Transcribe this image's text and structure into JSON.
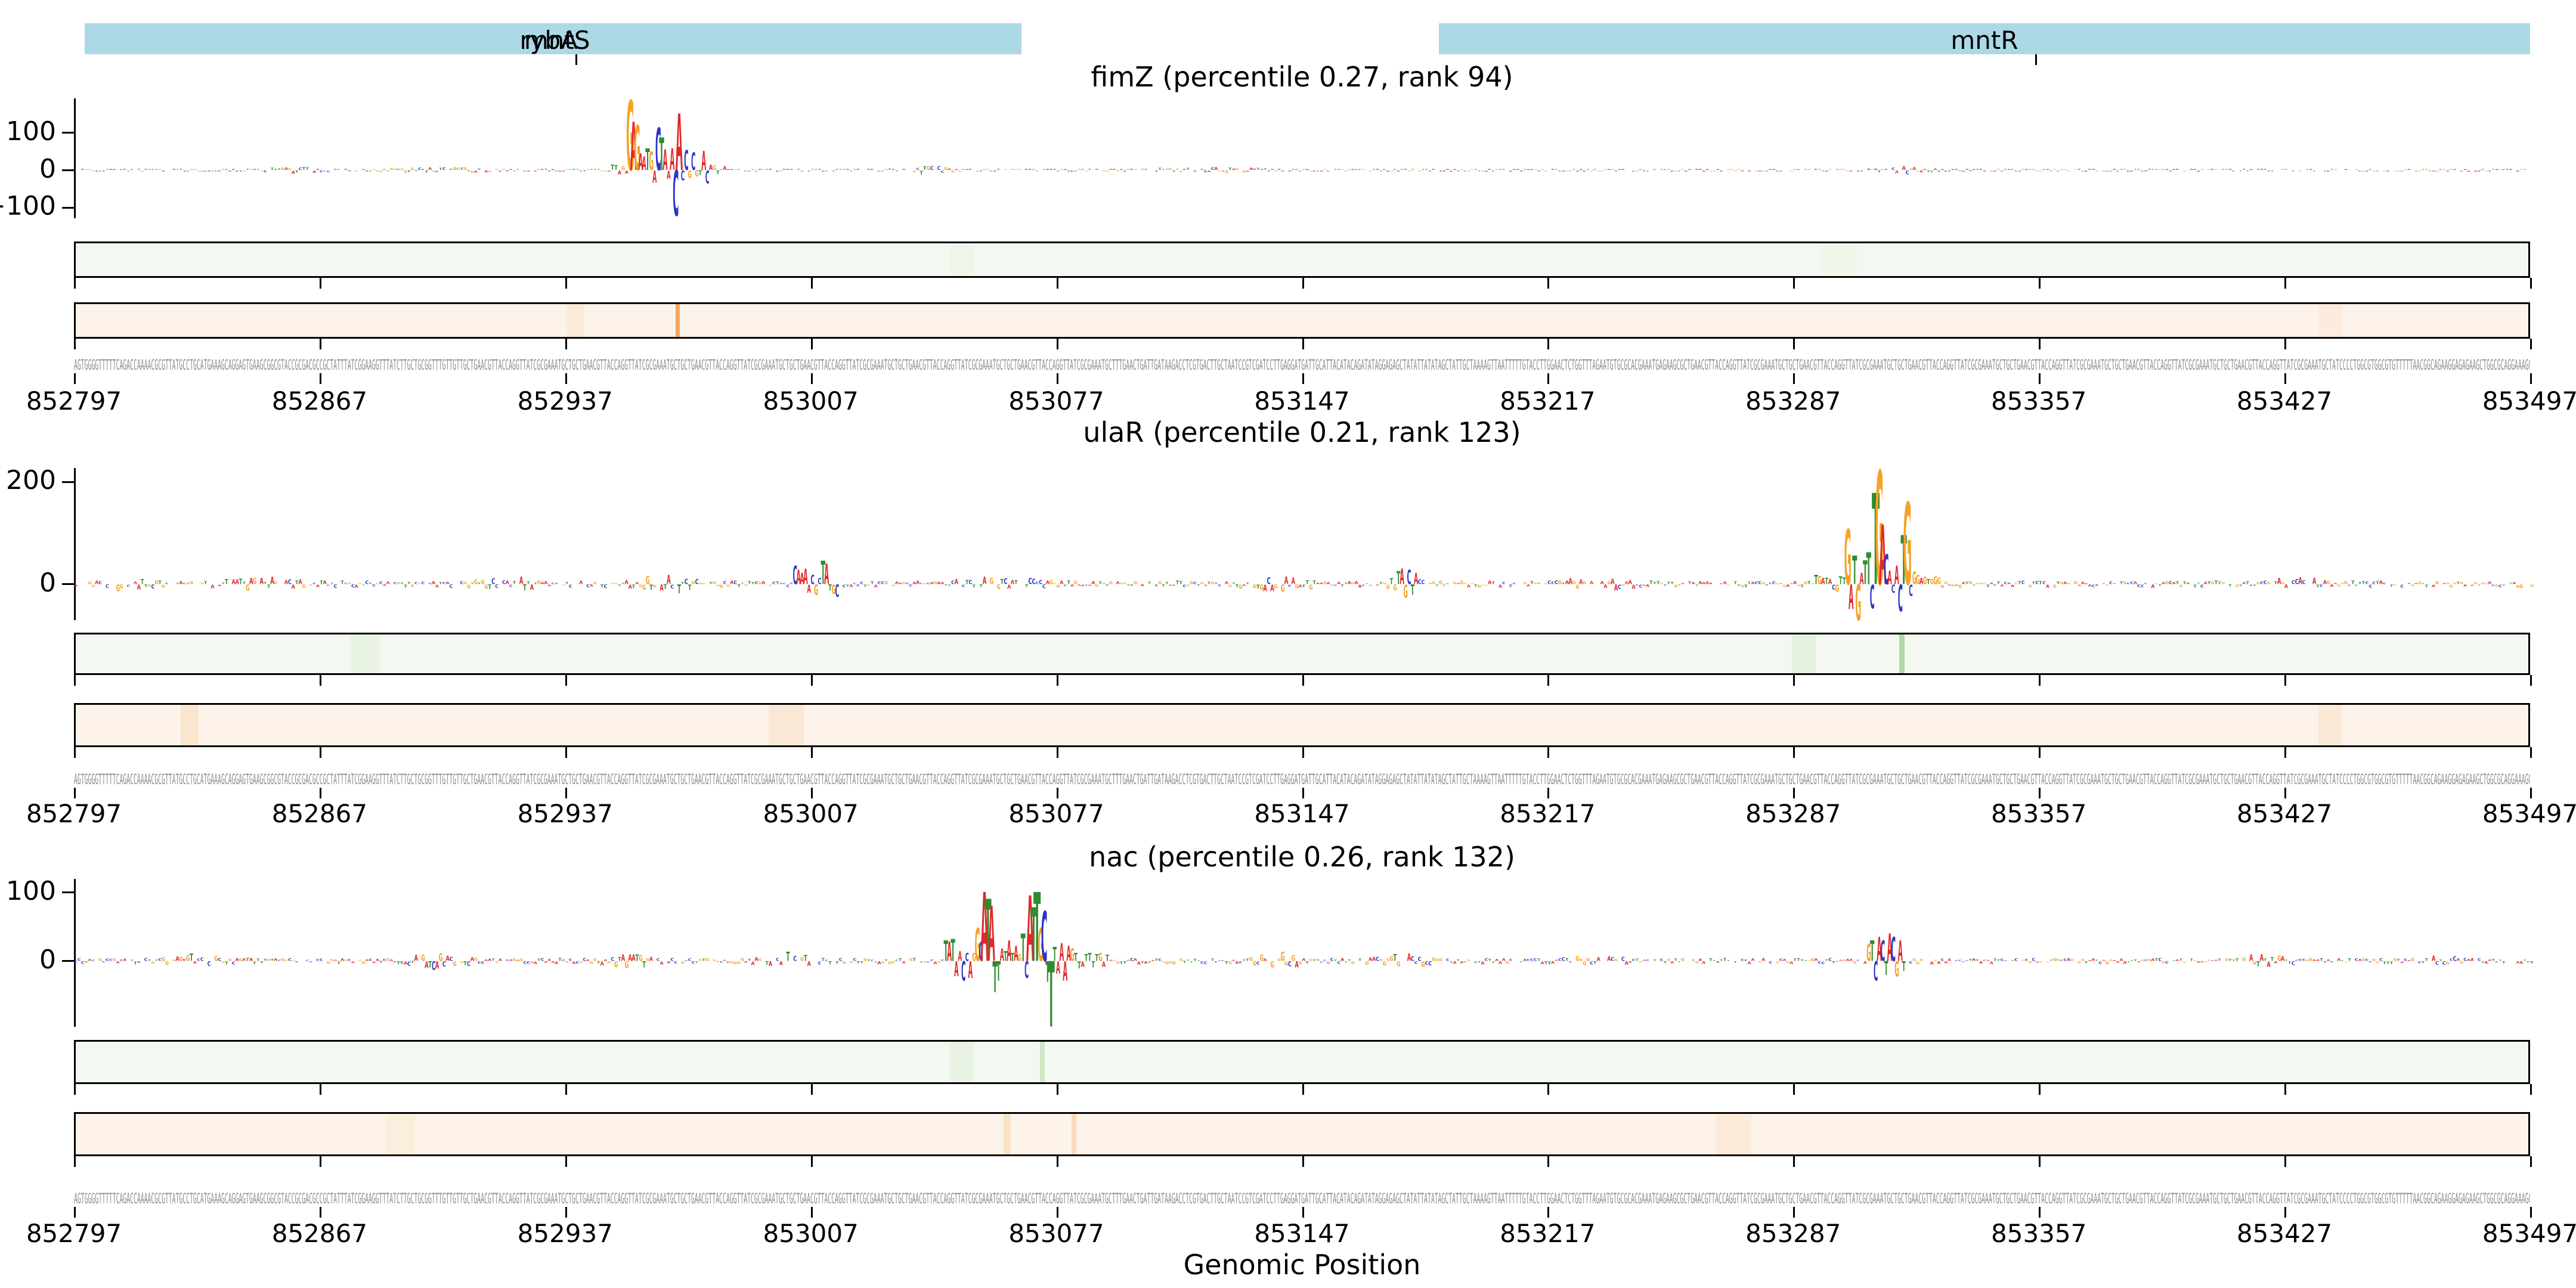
{
  "figure": {
    "background": "#ffffff"
  },
  "colors": {
    "A": "#e12729",
    "C": "#2b35c7",
    "G": "#f5a226",
    "T": "#2e8b2e",
    "gene_bar": "#add8e6",
    "band_green_bg": "#f3f9f0",
    "band_orange_bg": "#fdf3ea",
    "band_border": "#000000",
    "sequence_text": "#8c8c8c",
    "axis": "#000000"
  },
  "gene_track": {
    "genes": [
      {
        "labels": [
          "rybA",
          "mntS"
        ],
        "start_bp": 852800,
        "end_bp": 853067
      },
      {
        "labels": [
          "mntR"
        ],
        "start_bp": 853186,
        "end_bp": 853501
      }
    ],
    "tick_positions": [
      852940,
      853356
    ]
  },
  "axis": {
    "xlabel": "Genomic Position",
    "x_range": [
      852797,
      853497
    ],
    "x_ticks": [
      852797,
      852867,
      852937,
      853007,
      853077,
      853147,
      853217,
      853287,
      853357,
      853427,
      853497
    ]
  },
  "sequence_parts": {
    "start": "AGTGGGGTTTTTCAGACCAAAACGCGTTATGCCTGCATGAAAGCAGGAGTGAAGCGGCGTACCGCGACGCCGCTATTTATCGGAAGGTTTATCTTGCTGCGGTTTGTTGTT",
    "gap": "GCTGAACGTTACCAGGTTATCGCGAAATGCTGCTGAACGTTACCAGGTTATCGCGAAATGCTGCTGAACGTTACCAGGTTATCGCGAAATGCTGCTGAACGTTACCAGGTTATCGCGAAATGCTGCTGAACGTTACCAGGTTATCGCGAAATGCTGCTGAACGTTACCAGGTTATCGCGAAATGCT",
    "middle": "TTGAACTGATTGATAAGACCTCGTGACTTGCTAATCCGTCGATCCTTGAGGATGATTGCATTACATACAGATATAGGAGAGCTATATTATATAGCTATTGCTAAAAGTTAATTTTTGTACCTTGGAACTCTGGTTTAGAATGTGCGCACGAAATGAGAAGC",
    "end": "ATCCCCTGGCGTGGCGTGTTTTTAACGGCAGAAGGAGAGAAGCTGGCGCAGGAAAGC"
  },
  "chart_data": [
    {
      "type": "bar",
      "subtype": "attribution-logo",
      "title": "fimZ (percentile 0.27, rank 94)",
      "tf": "fimZ",
      "percentile": 0.27,
      "rank": 94,
      "x_range": [
        852797,
        853497
      ],
      "ylim": [
        -128,
        192
      ],
      "yticks": [
        100,
        0,
        -100
      ],
      "ytick_labels": [
        "100",
        "0",
        "−100"
      ],
      "motif": [
        [
          852950,
          "T",
          14
        ],
        [
          852951,
          "T",
          12
        ],
        [
          852952,
          "A",
          -10
        ],
        [
          852953,
          "G",
          10
        ],
        [
          852954,
          "A",
          -8
        ],
        [
          852955,
          "G",
          185
        ],
        [
          852956,
          "A",
          128
        ],
        [
          852957,
          "G",
          118
        ],
        [
          852958,
          "A",
          44
        ],
        [
          852959,
          "A",
          36
        ],
        [
          852960,
          "T",
          58
        ],
        [
          852961,
          "G",
          48
        ],
        [
          852962,
          "A",
          -32
        ],
        [
          852963,
          "C",
          112
        ],
        [
          852964,
          "T",
          86
        ],
        [
          852965,
          "A",
          54
        ],
        [
          852966,
          "A",
          -22
        ],
        [
          852967,
          "A",
          58
        ],
        [
          852968,
          "C",
          -120
        ],
        [
          852969,
          "A",
          150
        ],
        [
          852970,
          "C",
          -26
        ],
        [
          852971,
          "C",
          52
        ],
        [
          852972,
          "G",
          -20
        ],
        [
          852973,
          "C",
          46
        ],
        [
          852974,
          "G",
          -16
        ],
        [
          852975,
          "T",
          -12
        ],
        [
          852976,
          "A",
          50
        ],
        [
          852977,
          "C",
          -34
        ],
        [
          852978,
          "A",
          14
        ],
        [
          852979,
          "G",
          12
        ],
        [
          852980,
          "T",
          -10
        ],
        [
          852982,
          "A",
          10
        ]
      ],
      "noise": {
        "seed": 7,
        "base": 3,
        "bumps": [
          {
            "pos": 852860,
            "amp": 5,
            "sig": 6
          },
          {
            "pos": 852900,
            "amp": 7,
            "sig": 8
          },
          {
            "pos": 853040,
            "amp": 8,
            "sig": 5
          },
          {
            "pos": 853120,
            "amp": 5,
            "sig": 10
          },
          {
            "pos": 853318,
            "amp": 7,
            "sig": 5
          }
        ]
      },
      "stripes": {
        "green": [
          {
            "pos": 853050,
            "color": "#eef6ea",
            "w": 40
          },
          {
            "pos": 853300,
            "color": "#eff7eb",
            "w": 60
          }
        ],
        "orange": [
          {
            "pos": 852940,
            "color": "#fbe9da",
            "w": 30
          },
          {
            "pos": 852969,
            "color": "#f3a75f",
            "w": 7
          },
          {
            "pos": 853440,
            "color": "#fcecdd",
            "w": 40
          }
        ]
      }
    },
    {
      "type": "bar",
      "subtype": "attribution-logo",
      "title": "ulaR (percentile 0.21, rank 123)",
      "tf": "ulaR",
      "percentile": 0.21,
      "rank": 123,
      "x_range": [
        852797,
        853497
      ],
      "ylim": [
        -70,
        227
      ],
      "yticks": [
        200,
        0
      ],
      "ytick_labels": [
        "200",
        "0"
      ],
      "motif": [
        [
          853002,
          "C",
          35
        ],
        [
          853003,
          "A",
          28
        ],
        [
          853004,
          "A",
          22
        ],
        [
          853005,
          "A",
          30
        ],
        [
          853006,
          "A",
          -16
        ],
        [
          853007,
          "C",
          18
        ],
        [
          853008,
          "G",
          -20
        ],
        [
          853009,
          "C",
          12
        ],
        [
          853010,
          "T",
          45
        ],
        [
          853011,
          "A",
          40
        ],
        [
          853012,
          "T",
          -12
        ],
        [
          853013,
          "G",
          -18
        ],
        [
          853014,
          "C",
          -24
        ],
        [
          853174,
          "T",
          25
        ],
        [
          853175,
          "A",
          30
        ],
        [
          853176,
          "G",
          -25
        ],
        [
          853177,
          "C",
          28
        ],
        [
          853178,
          "T",
          -20
        ],
        [
          853179,
          "A",
          22
        ],
        [
          853293,
          "T",
          18
        ],
        [
          853294,
          "G",
          16
        ],
        [
          853295,
          "A",
          12
        ],
        [
          853296,
          "T",
          12
        ],
        [
          853297,
          "A",
          10
        ],
        [
          853298,
          "C",
          -10
        ],
        [
          853299,
          "G",
          -14
        ],
        [
          853300,
          "T",
          15
        ],
        [
          853301,
          "T",
          13
        ],
        [
          853302,
          "G",
          107
        ],
        [
          853303,
          "A",
          -48
        ],
        [
          853304,
          "T",
          55
        ],
        [
          853305,
          "G",
          -70
        ],
        [
          853306,
          "A",
          22
        ],
        [
          853307,
          "T",
          46
        ],
        [
          853308,
          "T",
          62
        ],
        [
          853309,
          "C",
          -46
        ],
        [
          853310,
          "T",
          177
        ],
        [
          853311,
          "G",
          220
        ],
        [
          853312,
          "A",
          115
        ],
        [
          853313,
          "C",
          58
        ],
        [
          853314,
          "A",
          26
        ],
        [
          853315,
          "C",
          -16
        ],
        [
          853316,
          "A",
          36
        ],
        [
          853317,
          "C",
          -52
        ],
        [
          853318,
          "T",
          95
        ],
        [
          853319,
          "G",
          159
        ],
        [
          853320,
          "C",
          -22
        ],
        [
          853321,
          "G",
          24
        ],
        [
          853322,
          "G",
          18
        ],
        [
          853323,
          "A",
          12
        ],
        [
          853324,
          "G",
          14
        ],
        [
          853325,
          "T",
          10
        ],
        [
          853326,
          "G",
          10
        ],
        [
          853327,
          "G",
          15
        ],
        [
          853328,
          "G",
          13
        ]
      ],
      "noise": {
        "seed": 13,
        "base": 6,
        "bumps": [
          {
            "pos": 852810,
            "amp": 7,
            "sig": 5
          },
          {
            "pos": 852850,
            "amp": 8,
            "sig": 8
          },
          {
            "pos": 852920,
            "amp": 9,
            "sig": 6
          },
          {
            "pos": 852965,
            "amp": 12,
            "sig": 6
          },
          {
            "pos": 853060,
            "amp": 9,
            "sig": 8
          },
          {
            "pos": 853140,
            "amp": 10,
            "sig": 6
          },
          {
            "pos": 853176,
            "amp": 14,
            "sig": 4
          },
          {
            "pos": 853230,
            "amp": 8,
            "sig": 6
          },
          {
            "pos": 853430,
            "amp": 9,
            "sig": 5
          }
        ]
      },
      "stripes": {
        "green": [
          {
            "pos": 852880,
            "color": "#eaf4e5",
            "w": 50
          },
          {
            "pos": 853290,
            "color": "#e4f1de",
            "w": 40
          },
          {
            "pos": 853318,
            "color": "#b2d8a6",
            "w": 9
          }
        ],
        "orange": [
          {
            "pos": 852830,
            "color": "#fae5cf",
            "w": 30
          },
          {
            "pos": 853000,
            "color": "#fae8d6",
            "w": 60
          },
          {
            "pos": 853440,
            "color": "#fbe9d8",
            "w": 40
          }
        ]
      }
    },
    {
      "type": "bar",
      "subtype": "attribution-logo",
      "title": "nac (percentile 0.26, rank 132)",
      "tf": "nac",
      "percentile": 0.26,
      "rank": 132,
      "x_range": [
        852797,
        853497
      ],
      "ylim": [
        -96,
        120
      ],
      "yticks": [
        100,
        0
      ],
      "ytick_labels": [
        "100",
        "0"
      ],
      "motif": [
        [
          853045,
          "T",
          30
        ],
        [
          853046,
          "A",
          28
        ],
        [
          853047,
          "T",
          32
        ],
        [
          853048,
          "A",
          -22
        ],
        [
          853049,
          "A",
          14
        ],
        [
          853050,
          "C",
          -28
        ],
        [
          853051,
          "C",
          12
        ],
        [
          853052,
          "A",
          -24
        ],
        [
          853053,
          "G",
          12
        ],
        [
          853054,
          "G",
          48
        ],
        [
          853055,
          "C",
          28
        ],
        [
          853056,
          "A",
          100
        ],
        [
          853057,
          "T",
          90
        ],
        [
          853058,
          "A",
          80
        ],
        [
          853059,
          "T",
          -45
        ],
        [
          853060,
          "T",
          -28
        ],
        [
          853061,
          "A",
          18
        ],
        [
          853062,
          "T",
          14
        ],
        [
          853063,
          "A",
          30
        ],
        [
          853064,
          "T",
          12
        ],
        [
          853065,
          "A",
          22
        ],
        [
          853066,
          "G",
          10
        ],
        [
          853067,
          "T",
          40
        ],
        [
          853068,
          "C",
          -24
        ],
        [
          853069,
          "A",
          95
        ],
        [
          853070,
          "T",
          78
        ],
        [
          853071,
          "T",
          100
        ],
        [
          853072,
          "G",
          48
        ],
        [
          853073,
          "C",
          72
        ],
        [
          853074,
          "T",
          -30
        ],
        [
          853075,
          "T",
          -95
        ],
        [
          853076,
          "T",
          20
        ],
        [
          853077,
          "A",
          -18
        ],
        [
          853078,
          "A",
          26
        ],
        [
          853079,
          "A",
          -28
        ],
        [
          853080,
          "A",
          22
        ],
        [
          853081,
          "G",
          18
        ],
        [
          853082,
          "T",
          12
        ],
        [
          853083,
          "T",
          -10
        ],
        [
          853084,
          "A",
          -8
        ],
        [
          853085,
          "T",
          10
        ],
        [
          853086,
          "T",
          12
        ],
        [
          853087,
          "T",
          -9
        ],
        [
          853088,
          "T",
          10
        ],
        [
          853089,
          "G",
          12
        ],
        [
          853090,
          "A",
          -8
        ],
        [
          853091,
          "T",
          9
        ],
        [
          853308,
          "G",
          25
        ],
        [
          853309,
          "T",
          30
        ],
        [
          853310,
          "C",
          -28
        ],
        [
          853311,
          "A",
          35
        ],
        [
          853312,
          "C",
          30
        ],
        [
          853313,
          "T",
          -20
        ],
        [
          853314,
          "A",
          40
        ],
        [
          853315,
          "C",
          35
        ],
        [
          853316,
          "G",
          -22
        ],
        [
          853317,
          "A",
          30
        ],
        [
          853318,
          "T",
          -14
        ]
      ],
      "noise": {
        "seed": 21,
        "base": 4,
        "bumps": [
          {
            "pos": 852830,
            "amp": 7,
            "sig": 6
          },
          {
            "pos": 852900,
            "amp": 8,
            "sig": 6
          },
          {
            "pos": 852955,
            "amp": 6,
            "sig": 6
          },
          {
            "pos": 853000,
            "amp": 8,
            "sig": 5
          },
          {
            "pos": 853140,
            "amp": 9,
            "sig": 5
          },
          {
            "pos": 853175,
            "amp": 8,
            "sig": 5
          },
          {
            "pos": 853230,
            "amp": 6,
            "sig": 5
          },
          {
            "pos": 853420,
            "amp": 6,
            "sig": 5
          },
          {
            "pos": 853470,
            "amp": 5,
            "sig": 4
          }
        ]
      },
      "stripes": {
        "green": [
          {
            "pos": 853050,
            "color": "#e9f3e4",
            "w": 40
          },
          {
            "pos": 853073,
            "color": "#cfe7c5",
            "w": 8
          }
        ],
        "orange": [
          {
            "pos": 852890,
            "color": "#fceedd",
            "w": 50
          },
          {
            "pos": 853063,
            "color": "#fbe2c6",
            "w": 12
          },
          {
            "pos": 853082,
            "color": "#f8dcba",
            "w": 8
          },
          {
            "pos": 853270,
            "color": "#fcebdb",
            "w": 60
          }
        ]
      }
    }
  ]
}
